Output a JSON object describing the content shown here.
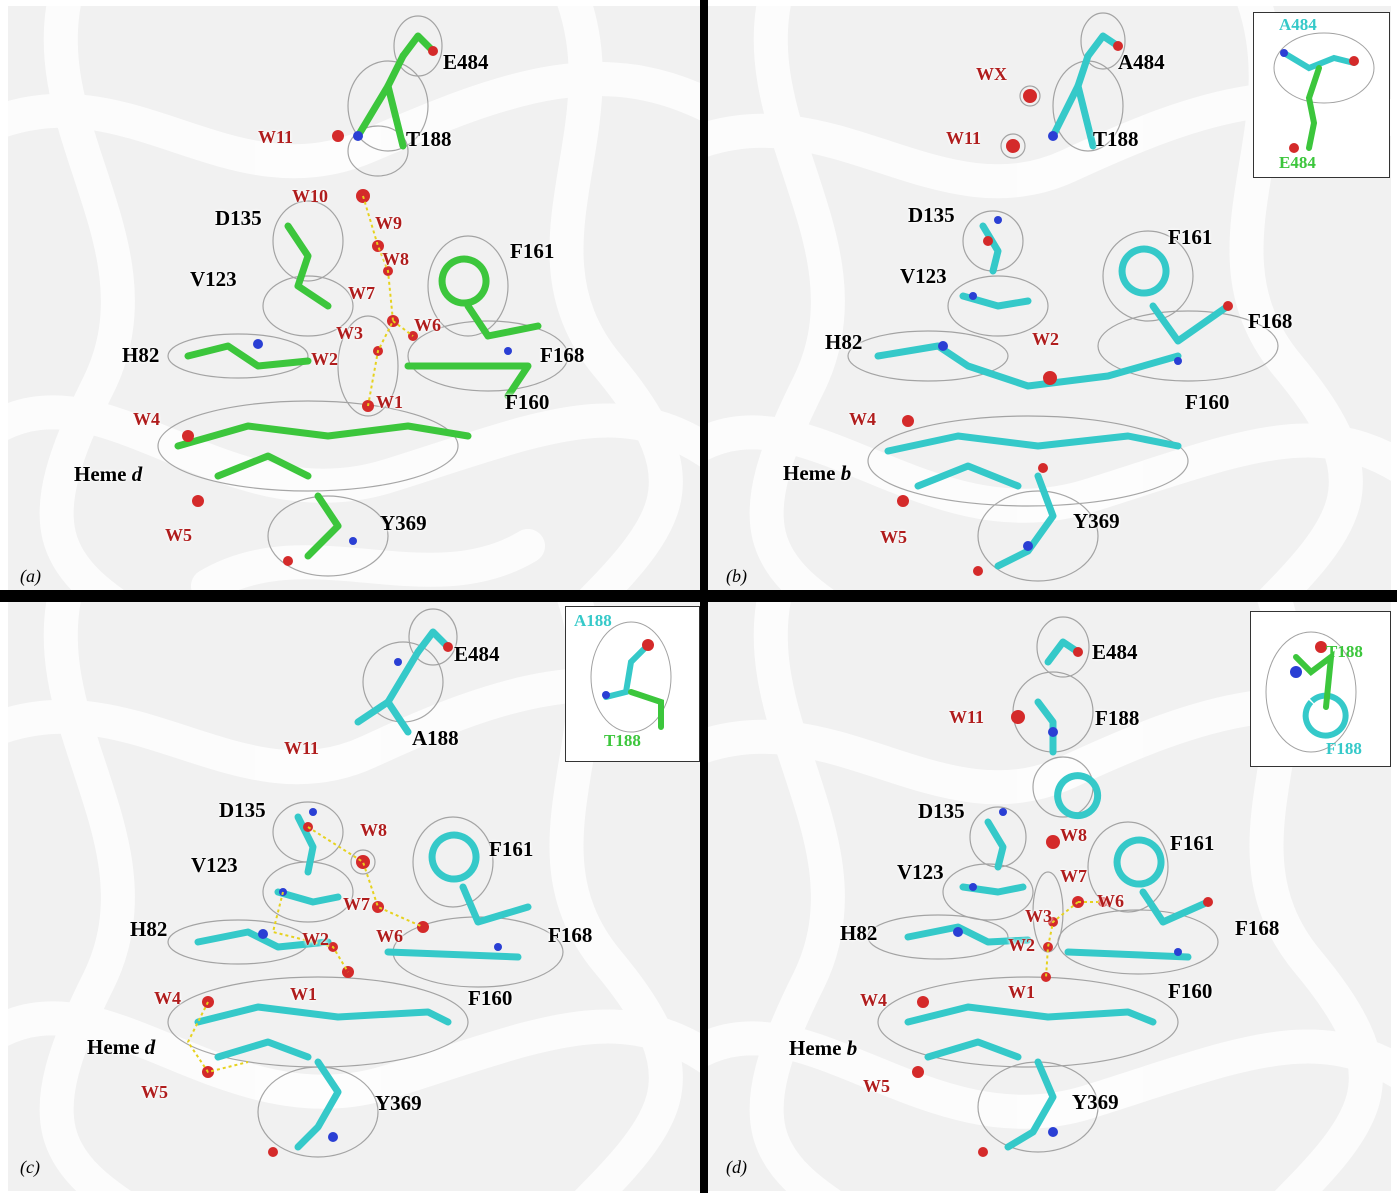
{
  "figure": {
    "panels": [
      {
        "letter": "(a)",
        "stick_color": "#3cc63c",
        "residues": [
          "E484",
          "T188",
          "D135",
          "V123",
          "H82",
          "F161",
          "F168",
          "F160",
          "Y369"
        ],
        "heme": {
          "prefix": "Heme ",
          "suffix": "d"
        },
        "waters": [
          "W11",
          "W10",
          "W9",
          "W8",
          "W7",
          "W6",
          "W3",
          "W2",
          "W1",
          "W4",
          "W5"
        ]
      },
      {
        "letter": "(b)",
        "stick_color": "#35c9c9",
        "residues": [
          "A484",
          "T188",
          "D135",
          "V123",
          "H82",
          "F161",
          "F168",
          "F160",
          "Y369"
        ],
        "heme": {
          "prefix": "Heme ",
          "suffix": "b"
        },
        "waters": [
          "WX",
          "W11",
          "W2",
          "W4",
          "W5"
        ],
        "inset": {
          "top": "A484",
          "bottom": "E484"
        }
      },
      {
        "letter": "(c)",
        "stick_color": "#35c9c9",
        "residues": [
          "E484",
          "A188",
          "D135",
          "V123",
          "H82",
          "F161",
          "F168",
          "F160",
          "Y369"
        ],
        "heme": {
          "prefix": "Heme ",
          "suffix": "d"
        },
        "waters": [
          "W11",
          "W8",
          "W7",
          "W6",
          "W2",
          "W1",
          "W4",
          "W5"
        ],
        "inset": {
          "top": "A188",
          "bottom": "T188"
        }
      },
      {
        "letter": "(d)",
        "stick_color": "#35c9c9",
        "residues": [
          "E484",
          "F188",
          "D135",
          "V123",
          "H82",
          "F161",
          "F168",
          "F160",
          "Y369"
        ],
        "heme": {
          "prefix": "Heme ",
          "suffix": "b"
        },
        "waters": [
          "W11",
          "W8",
          "W7",
          "W6",
          "W3",
          "W2",
          "W1",
          "W4",
          "W5"
        ],
        "inset": {
          "top": "T188",
          "bottom": "F188"
        }
      }
    ],
    "colors": {
      "background": "#f1f1f1",
      "ribbon": "#ffffff",
      "mesh": "#8a8a8a",
      "oxygen": "#d42a2a",
      "nitrogen": "#2a3fd4",
      "water_label": "#b01d1d",
      "hbond": "#e6d21e",
      "carbon_green": "#3cc63c",
      "carbon_cyan": "#35c9c9"
    }
  }
}
